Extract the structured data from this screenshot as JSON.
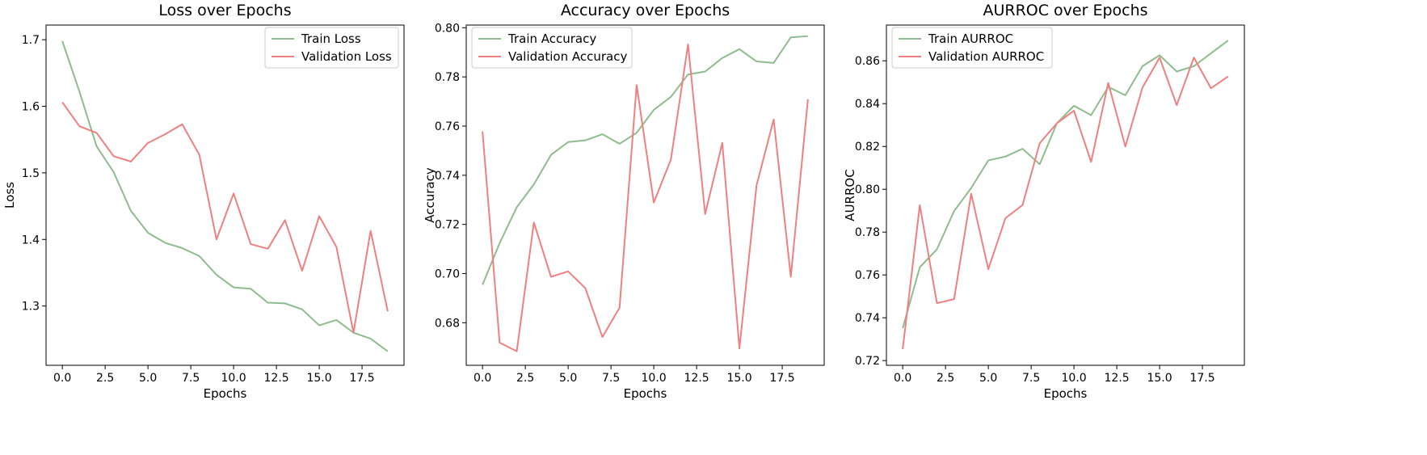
{
  "chart_data": [
    {
      "type": "line",
      "title": "Loss over Epochs",
      "xlabel": "Epochs",
      "ylabel": "Loss",
      "x": [
        0,
        1,
        2,
        3,
        4,
        5,
        6,
        7,
        8,
        9,
        10,
        11,
        12,
        13,
        14,
        15,
        16,
        17,
        18,
        19
      ],
      "xlim": [
        -0.95,
        19.95
      ],
      "ylim": [
        1.211,
        1.722
      ],
      "xticks": [
        0,
        2.5,
        5,
        7.5,
        10,
        12.5,
        15,
        17.5
      ],
      "xtick_labels": [
        "0.0",
        "2.5",
        "5.0",
        "7.5",
        "10.0",
        "12.5",
        "15.0",
        "17.5"
      ],
      "yticks": [
        1.3,
        1.4,
        1.5,
        1.6,
        1.7
      ],
      "ytick_labels": [
        "1.3",
        "1.4",
        "1.5",
        "1.6",
        "1.7"
      ],
      "grid": false,
      "legend_position": "top-right",
      "series": [
        {
          "name": "Train Loss",
          "color": "#8fbc8f",
          "values": [
            1.698,
            1.622,
            1.54,
            1.501,
            1.443,
            1.41,
            1.395,
            1.387,
            1.375,
            1.347,
            1.328,
            1.326,
            1.305,
            1.304,
            1.295,
            1.271,
            1.279,
            1.26,
            1.251,
            1.232
          ]
        },
        {
          "name": "Validation Loss",
          "color": "#f08080",
          "values": [
            1.606,
            1.57,
            1.56,
            1.525,
            1.517,
            1.545,
            1.558,
            1.573,
            1.527,
            1.4,
            1.469,
            1.393,
            1.386,
            1.429,
            1.353,
            1.435,
            1.389,
            1.26,
            1.413,
            1.292
          ]
        }
      ]
    },
    {
      "type": "line",
      "title": "Accuracy over Epochs",
      "xlabel": "Epochs",
      "ylabel": "Accuracy",
      "x": [
        0,
        1,
        2,
        3,
        4,
        5,
        6,
        7,
        8,
        9,
        10,
        11,
        12,
        13,
        14,
        15,
        16,
        17,
        18,
        19
      ],
      "xlim": [
        -0.95,
        19.95
      ],
      "ylim": [
        0.6627,
        0.8011
      ],
      "xticks": [
        0,
        2.5,
        5,
        7.5,
        10,
        12.5,
        15,
        17.5
      ],
      "xtick_labels": [
        "0.0",
        "2.5",
        "5.0",
        "7.5",
        "10.0",
        "12.5",
        "15.0",
        "17.5"
      ],
      "yticks": [
        0.68,
        0.7,
        0.72,
        0.74,
        0.76,
        0.78,
        0.8
      ],
      "ytick_labels": [
        "0.68",
        "0.70",
        "0.72",
        "0.74",
        "0.76",
        "0.78",
        "0.80"
      ],
      "grid": false,
      "legend_position": "top-left",
      "series": [
        {
          "name": "Train Accuracy",
          "color": "#8fbc8f",
          "values": [
            0.6955,
            0.7124,
            0.727,
            0.7363,
            0.7483,
            0.7535,
            0.7542,
            0.7567,
            0.7528,
            0.7573,
            0.7666,
            0.7719,
            0.781,
            0.7822,
            0.7877,
            0.7913,
            0.7863,
            0.7857,
            0.7961,
            0.7966
          ]
        },
        {
          "name": "Validation Accuracy",
          "color": "#f08080",
          "values": [
            0.7578,
            0.6719,
            0.6684,
            0.7208,
            0.6987,
            0.7009,
            0.6941,
            0.6742,
            0.6861,
            0.7767,
            0.7289,
            0.7464,
            0.7932,
            0.7242,
            0.7532,
            0.6696,
            0.7359,
            0.7627,
            0.6987,
            0.7709
          ]
        }
      ]
    },
    {
      "type": "line",
      "title": "AURROC over Epochs",
      "xlabel": "Epochs",
      "ylabel": "AURROC",
      "x": [
        0,
        1,
        2,
        3,
        4,
        5,
        6,
        7,
        8,
        9,
        10,
        11,
        12,
        13,
        14,
        15,
        16,
        17,
        18,
        19
      ],
      "xlim": [
        -0.95,
        19.95
      ],
      "ylim": [
        0.7178,
        0.8767
      ],
      "xticks": [
        0,
        2.5,
        5,
        7.5,
        10,
        12.5,
        15,
        17.5
      ],
      "xtick_labels": [
        "0.0",
        "2.5",
        "5.0",
        "7.5",
        "10.0",
        "12.5",
        "15.0",
        "17.5"
      ],
      "yticks": [
        0.72,
        0.74,
        0.76,
        0.78,
        0.8,
        0.82,
        0.84,
        0.86
      ],
      "ytick_labels": [
        "0.72",
        "0.74",
        "0.76",
        "0.78",
        "0.80",
        "0.82",
        "0.84",
        "0.86"
      ],
      "grid": false,
      "legend_position": "top-left",
      "series": [
        {
          "name": "Train AURROC",
          "color": "#8fbc8f",
          "values": [
            0.7351,
            0.7636,
            0.772,
            0.7898,
            0.8006,
            0.8135,
            0.8153,
            0.8189,
            0.8117,
            0.8308,
            0.839,
            0.8346,
            0.8478,
            0.8439,
            0.8575,
            0.8626,
            0.855,
            0.8575,
            0.8635,
            0.8695
          ]
        },
        {
          "name": "Validation AURROC",
          "color": "#f08080",
          "values": [
            0.7253,
            0.7926,
            0.7468,
            0.7487,
            0.7979,
            0.7627,
            0.7865,
            0.7927,
            0.8215,
            0.8308,
            0.8367,
            0.8128,
            0.8497,
            0.82,
            0.8475,
            0.8615,
            0.8393,
            0.8615,
            0.8472,
            0.8527
          ]
        }
      ]
    }
  ]
}
